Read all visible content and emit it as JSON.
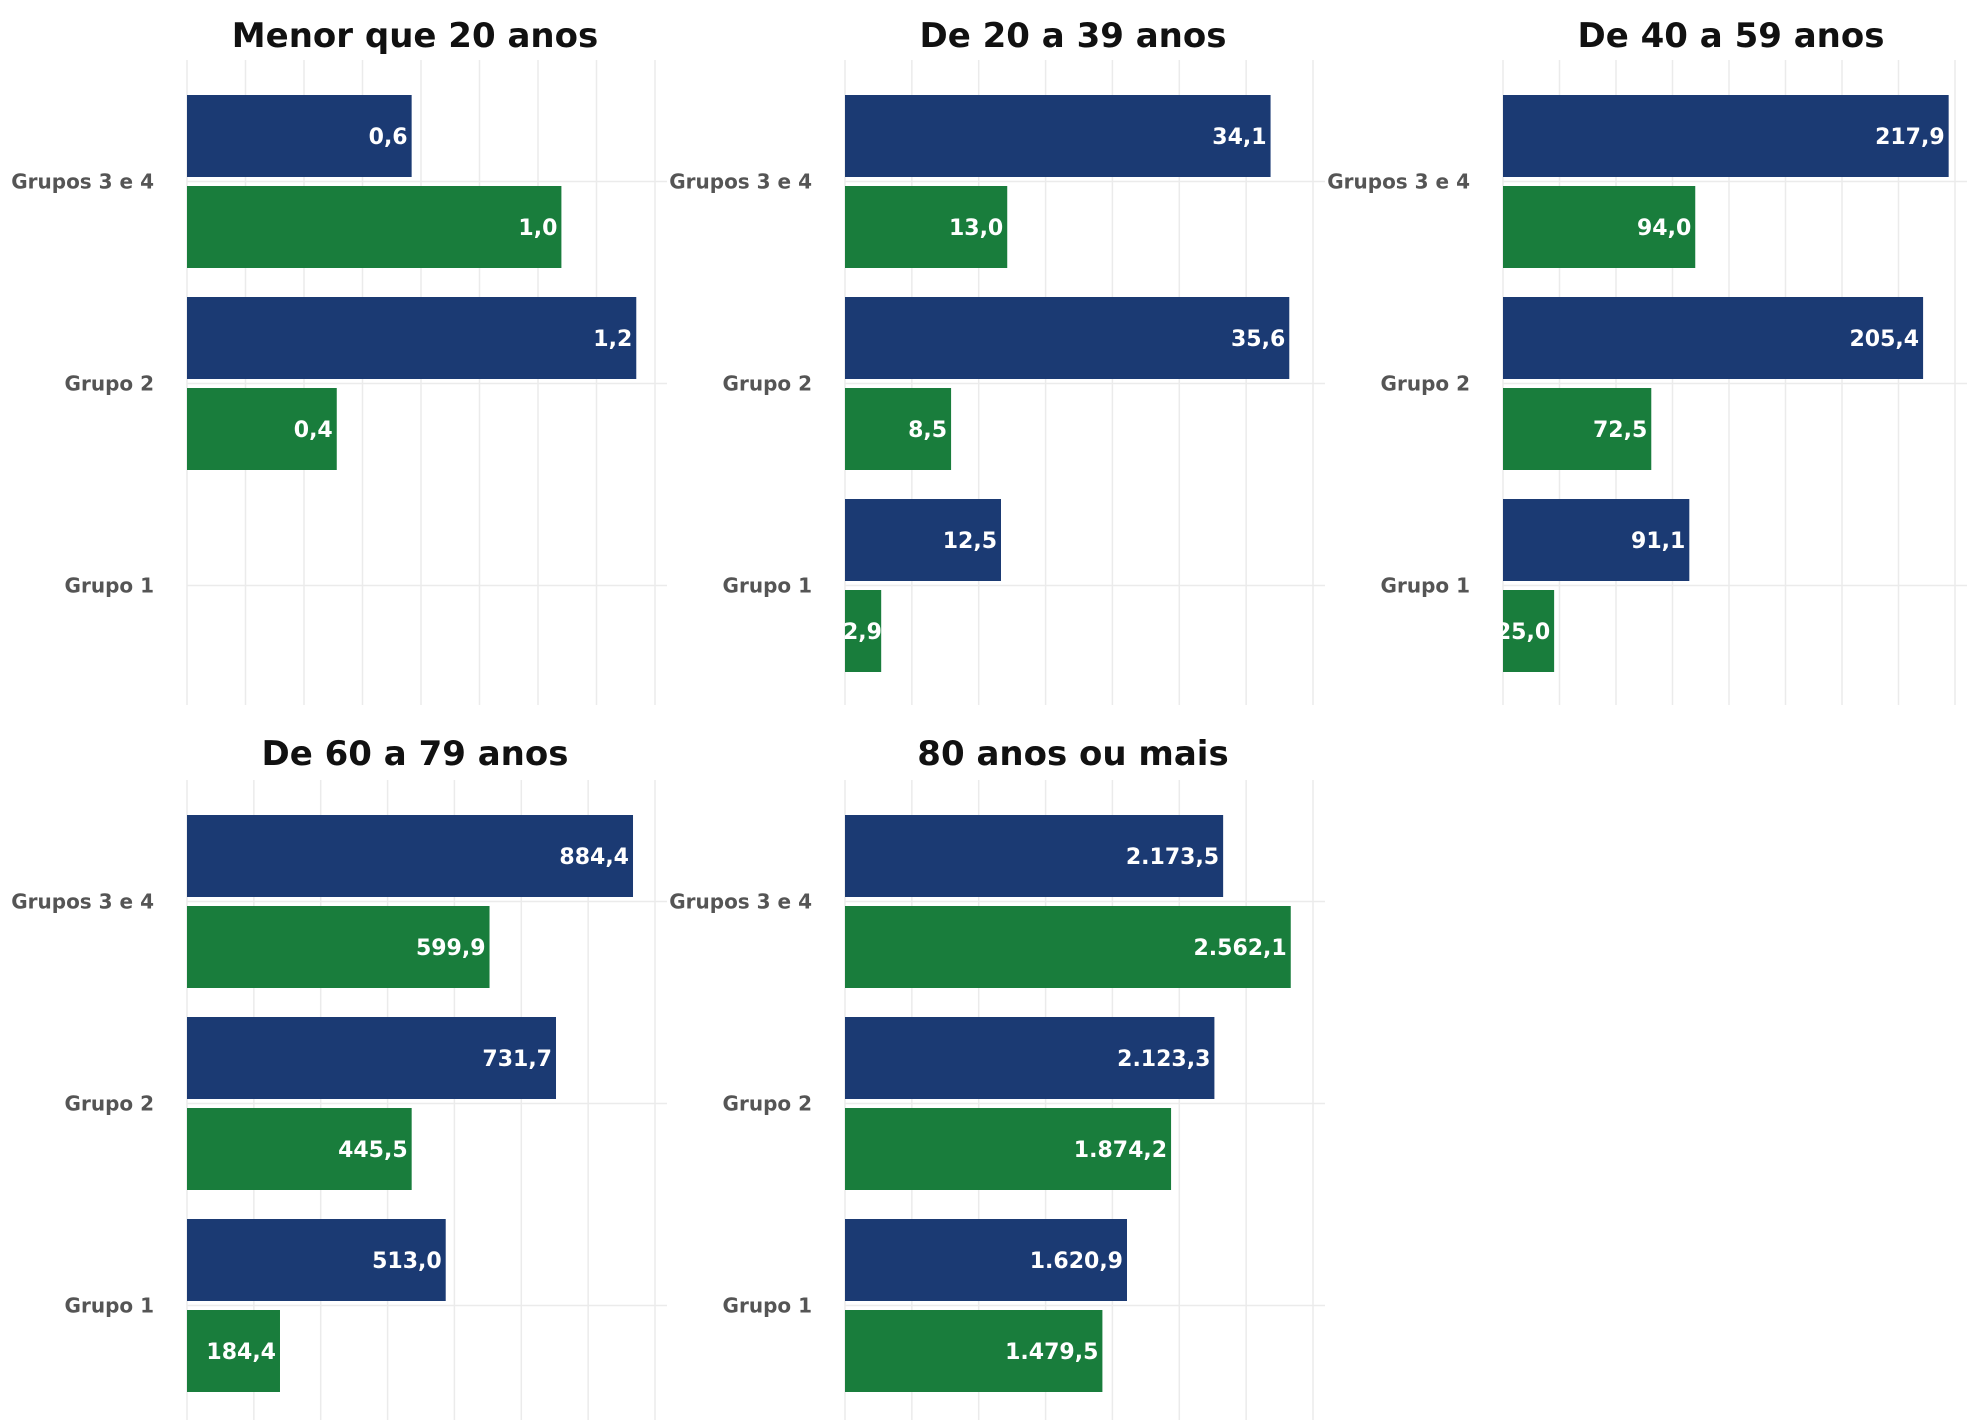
{
  "colors": {
    "series_a": "#1b3a73",
    "series_b": "#197d3c",
    "grid": "#ebebeb",
    "category_text": "#555555"
  },
  "chart_data": [
    {
      "type": "bar",
      "orientation": "horizontal",
      "title": "Menor que 20 anos",
      "categories": [
        "Grupos 3 e 4",
        "Grupo 2",
        "Grupo 1"
      ],
      "series": [
        {
          "color": "#1b3a73",
          "values": [
            0.6,
            1.2,
            null
          ],
          "labels": [
            "0,6",
            "1,2",
            ""
          ]
        },
        {
          "color": "#197d3c",
          "values": [
            1.0,
            0.4,
            null
          ],
          "labels": [
            "1,0",
            "0,4",
            ""
          ]
        }
      ],
      "xlim": [
        0,
        1.25
      ],
      "grid": true
    },
    {
      "type": "bar",
      "orientation": "horizontal",
      "title": "De 20 a 39 anos",
      "categories": [
        "Grupos 3 e 4",
        "Grupo 2",
        "Grupo 1"
      ],
      "series": [
        {
          "color": "#1b3a73",
          "values": [
            34.1,
            35.6,
            12.5
          ],
          "labels": [
            "34,1",
            "35,6",
            "12,5"
          ]
        },
        {
          "color": "#197d3c",
          "values": [
            13.0,
            8.5,
            2.9
          ],
          "labels": [
            "13,0",
            "8,5",
            "2,9"
          ]
        }
      ],
      "xlim": [
        0,
        37.5
      ],
      "grid": true
    },
    {
      "type": "bar",
      "orientation": "horizontal",
      "title": "De 40 a 59 anos",
      "categories": [
        "Grupos 3 e 4",
        "Grupo 2",
        "Grupo 1"
      ],
      "series": [
        {
          "color": "#1b3a73",
          "values": [
            217.9,
            205.4,
            91.1
          ],
          "labels": [
            "217,9",
            "205,4",
            "91,1"
          ]
        },
        {
          "color": "#197d3c",
          "values": [
            94.0,
            72.5,
            25.0
          ],
          "labels": [
            "94,0",
            "72,5",
            "25,0"
          ]
        }
      ],
      "xlim": [
        0,
        221
      ],
      "grid": true
    },
    {
      "type": "bar",
      "orientation": "horizontal",
      "title": "De 60 a 79 anos",
      "categories": [
        "Grupos 3 e 4",
        "Grupo 2",
        "Grupo 1"
      ],
      "series": [
        {
          "color": "#1b3a73",
          "values": [
            884.4,
            731.7,
            513.0
          ],
          "labels": [
            "884,4",
            "731,7",
            "513,0"
          ]
        },
        {
          "color": "#197d3c",
          "values": [
            599.9,
            445.5,
            184.4
          ],
          "labels": [
            "599,9",
            "445,5",
            "184,4"
          ]
        }
      ],
      "xlim": [
        0,
        928
      ],
      "grid": true
    },
    {
      "type": "bar",
      "orientation": "horizontal",
      "title": "80 anos ou mais",
      "categories": [
        "Grupos 3 e 4",
        "Grupo 2",
        "Grupo 1"
      ],
      "series": [
        {
          "color": "#1b3a73",
          "values": [
            2173.5,
            2123.3,
            1620.9
          ],
          "labels": [
            "2.173,5",
            "2.123,3",
            "1.620,9"
          ]
        },
        {
          "color": "#197d3c",
          "values": [
            2562.1,
            1874.2,
            1479.5
          ],
          "labels": [
            "2.562,1",
            "1.874,2",
            "1.479,5"
          ]
        }
      ],
      "xlim": [
        0,
        2690
      ],
      "grid": true
    }
  ]
}
